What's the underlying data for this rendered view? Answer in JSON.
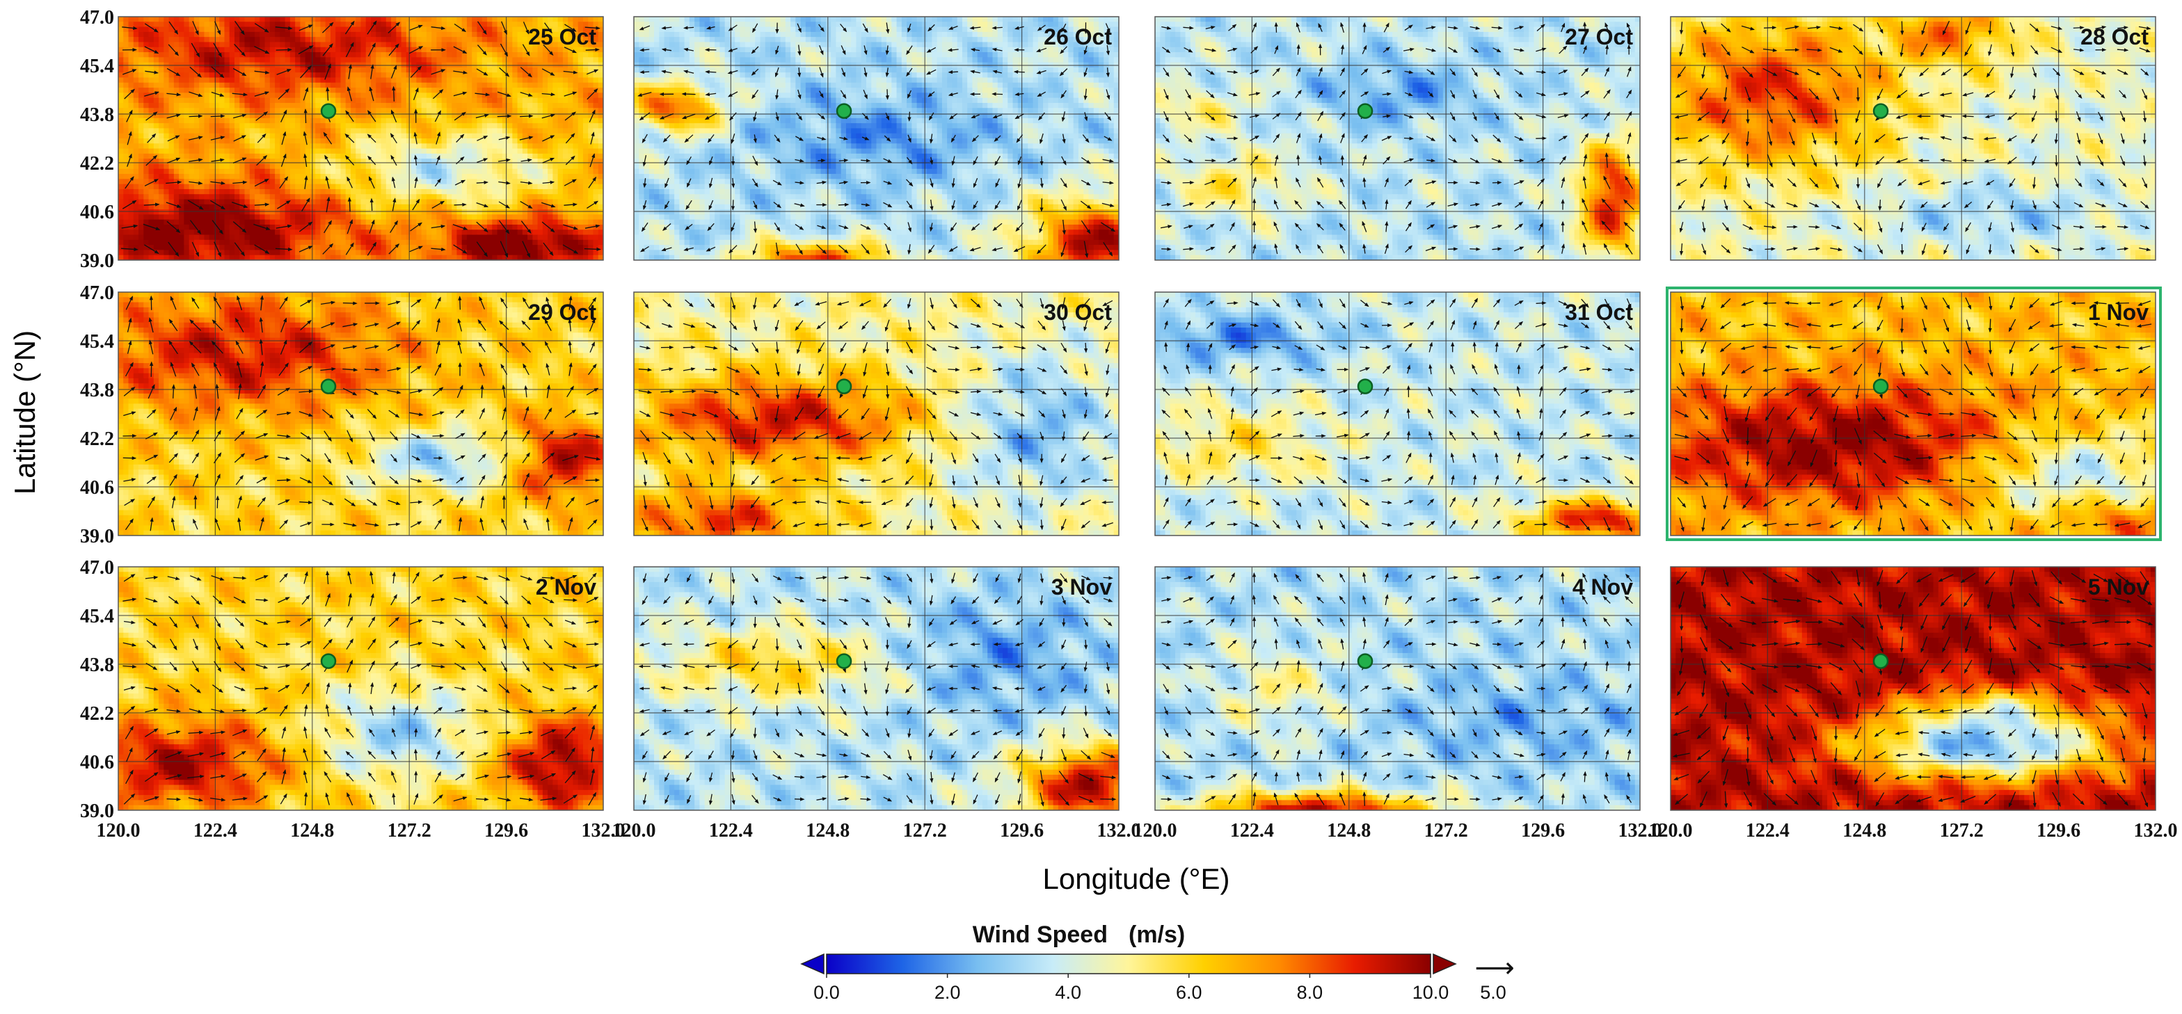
{
  "chart_data": {
    "type": "heatmap",
    "title": "",
    "xlabel": "Longitude (°E)",
    "ylabel": "Latitude (°N)",
    "x_ticks": [
      "120.0",
      "122.4",
      "124.8",
      "127.2",
      "129.6",
      "132.0"
    ],
    "y_ticks": [
      "47.0",
      "45.4",
      "43.8",
      "42.2",
      "40.6",
      "39.0"
    ],
    "xlim": [
      120.0,
      132.0
    ],
    "ylim": [
      39.0,
      47.0
    ],
    "station": {
      "lon": 125.2,
      "lat": 43.9
    },
    "highlighted_panel": "1 Nov",
    "panels": [
      {
        "label": "25 Oct",
        "mean": 6.8,
        "blobs": [
          [
            122,
            40,
            3.5,
            1.5,
            3.5
          ],
          [
            128,
            42,
            2.5,
            1.2,
            -3
          ],
          [
            124,
            46,
            4,
            1.5,
            2.5
          ],
          [
            130,
            39.5,
            2,
            0.8,
            4
          ]
        ]
      },
      {
        "label": "26 Oct",
        "mean": 3.5,
        "blobs": [
          [
            131.5,
            39.5,
            1.8,
            1.5,
            6
          ],
          [
            124.5,
            39,
            1.8,
            0.6,
            5
          ],
          [
            121,
            44,
            1.2,
            0.8,
            4.5
          ],
          [
            126,
            43,
            3,
            1.5,
            -1.5
          ]
        ]
      },
      {
        "label": "27 Oct",
        "mean": 3.6,
        "blobs": [
          [
            131.3,
            41,
            0.8,
            1.8,
            5.5
          ],
          [
            122,
            41.5,
            1.5,
            1,
            2
          ],
          [
            126,
            44.5,
            2,
            1,
            -1.5
          ],
          [
            121,
            44,
            1.5,
            0.8,
            1.5
          ]
        ]
      },
      {
        "label": "28 Oct",
        "mean": 4.5,
        "blobs": [
          [
            122.5,
            44.5,
            3,
            2.5,
            4
          ],
          [
            127,
            46.5,
            1.5,
            1,
            3
          ],
          [
            128,
            40.5,
            3,
            1,
            -1.5
          ]
        ]
      },
      {
        "label": "29 Oct",
        "mean": 6.0,
        "blobs": [
          [
            123,
            45,
            4,
            2,
            3
          ],
          [
            131,
            41.5,
            1.3,
            1.3,
            3.5
          ],
          [
            128,
            41.5,
            2,
            1,
            -3
          ]
        ]
      },
      {
        "label": "30 Oct",
        "mean": 5.0,
        "blobs": [
          [
            123.5,
            42.8,
            3.5,
            1.5,
            4
          ],
          [
            122,
            39.5,
            2.5,
            1,
            3.5
          ],
          [
            130,
            42.5,
            2,
            2.5,
            -2.5
          ]
        ]
      },
      {
        "label": "31 Oct",
        "mean": 3.8,
        "blobs": [
          [
            131,
            39.5,
            2,
            0.7,
            5
          ],
          [
            122,
            42,
            2.5,
            1.3,
            1.8
          ],
          [
            122,
            45.5,
            2.5,
            0.8,
            -2
          ]
        ]
      },
      {
        "label": "1 Nov",
        "mean": 6.5,
        "blobs": [
          [
            124,
            42,
            4.5,
            2,
            3.5
          ],
          [
            130,
            41,
            2.5,
            1.5,
            -3
          ],
          [
            131,
            39.5,
            1.5,
            0.7,
            2
          ]
        ]
      },
      {
        "label": "2 Nov",
        "mean": 6.0,
        "blobs": [
          [
            121.5,
            40.5,
            2.5,
            1.5,
            3.5
          ],
          [
            131,
            40.5,
            1.5,
            1.5,
            4
          ],
          [
            127,
            41.5,
            2,
            1.5,
            -3
          ]
        ]
      },
      {
        "label": "3 Nov",
        "mean": 3.6,
        "blobs": [
          [
            131.3,
            39.8,
            1.7,
            1.3,
            6
          ],
          [
            123.5,
            43.8,
            3,
            1.2,
            2.5
          ],
          [
            129,
            44,
            2.5,
            2,
            -1.5
          ]
        ]
      },
      {
        "label": "4 Nov",
        "mean": 3.4,
        "blobs": [
          [
            124,
            39,
            2.8,
            0.6,
            6
          ],
          [
            123,
            43,
            1.5,
            1.5,
            1.5
          ],
          [
            129,
            42,
            3,
            1.5,
            -1
          ]
        ]
      },
      {
        "label": "5 Nov",
        "mean": 9.5,
        "blobs": [
          [
            127.8,
            41.1,
            3.2,
            1.1,
            -7
          ],
          [
            128,
            42.4,
            2,
            0.7,
            -3
          ]
        ]
      }
    ],
    "colorbar": {
      "title": "Wind Speed",
      "units": "(m/s)",
      "range": [
        0.0,
        10.0
      ],
      "ticks": [
        "0.0",
        "2.0",
        "4.0",
        "6.0",
        "8.0",
        "10.0"
      ],
      "colors": [
        "#0a00c8",
        "#1e64e6",
        "#78bef0",
        "#c8ecf8",
        "#fff59a",
        "#ffd000",
        "#ff8a00",
        "#e81c00",
        "#8a0000"
      ]
    },
    "reference_vector": {
      "label": "5.0",
      "arrow": "⟶"
    }
  }
}
